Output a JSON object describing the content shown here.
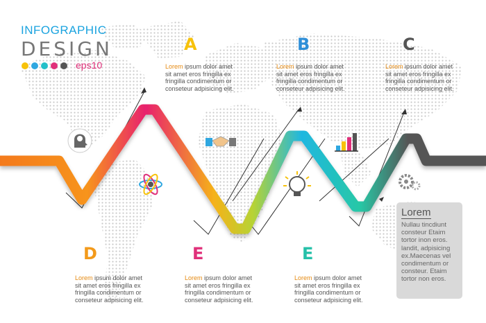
{
  "header": {
    "title_line1": "INFOGRAPHIC",
    "title_line2": "DESIGN",
    "eps_label": "eps10",
    "dot_colors": [
      "#f7c20b",
      "#2fa7e0",
      "#25c0c9",
      "#e0307a",
      "#555555"
    ]
  },
  "steps": [
    {
      "letter": "A",
      "color": "#f7c20b",
      "lead": "Lorem",
      "lines": [
        "ipsum dolor amet",
        "sit amet eros fringilla ex",
        "fringilla condimentum or",
        "conseteur adpisicing elit."
      ]
    },
    {
      "letter": "B",
      "color": "#2f8fd8",
      "lead": "Lorem",
      "lines": [
        "ipsum dolor amet",
        "sit amet eros fringilla ex",
        "fringilla condimentum or",
        "conseteur adpisicing elit."
      ]
    },
    {
      "letter": "C",
      "color": "#555555",
      "lead": "Lorem",
      "lines": [
        "ipsum dolor amet",
        "sit amet eros fringilla ex",
        "fringilla condimentum or",
        "conseteur adpisicing elit."
      ]
    },
    {
      "letter": "D",
      "color": "#f39a1b",
      "lead": "Lorem",
      "lines": [
        "ipsum dolor amet",
        "sit amet eros fringilla ex",
        "fringilla condimentum or",
        "conseteur adpisicing elit."
      ]
    },
    {
      "letter": "E",
      "color": "#e0307a",
      "lead": "Lorem",
      "lines": [
        "ipsum dolor amet",
        "sit amet eros fringilla ex",
        "fringilla condimentum or",
        "conseteur adpisicing elit."
      ]
    },
    {
      "letter": "E",
      "color": "#25c0a9",
      "lead": "Lorem",
      "lines": [
        "ipsum dolor amet",
        "sit amet eros fringilla ex",
        "fringilla condimentum or",
        "conseteur adpisicing elit."
      ]
    }
  ],
  "side_panel": {
    "heading": "Lorem",
    "lines": [
      "Nullau tincdiunt",
      "consteur Etaim",
      "tortor inon eros.",
      "landit, adpisicing",
      "ex.Maecenas vel",
      "condimentum or",
      "consteur. Etaim",
      "tortor non eros."
    ]
  },
  "icons": [
    "brain-head-icon",
    "atom-people-icon",
    "handshake-icon",
    "lightbulb-icon",
    "bar-chart-icon",
    "gears-icon"
  ]
}
